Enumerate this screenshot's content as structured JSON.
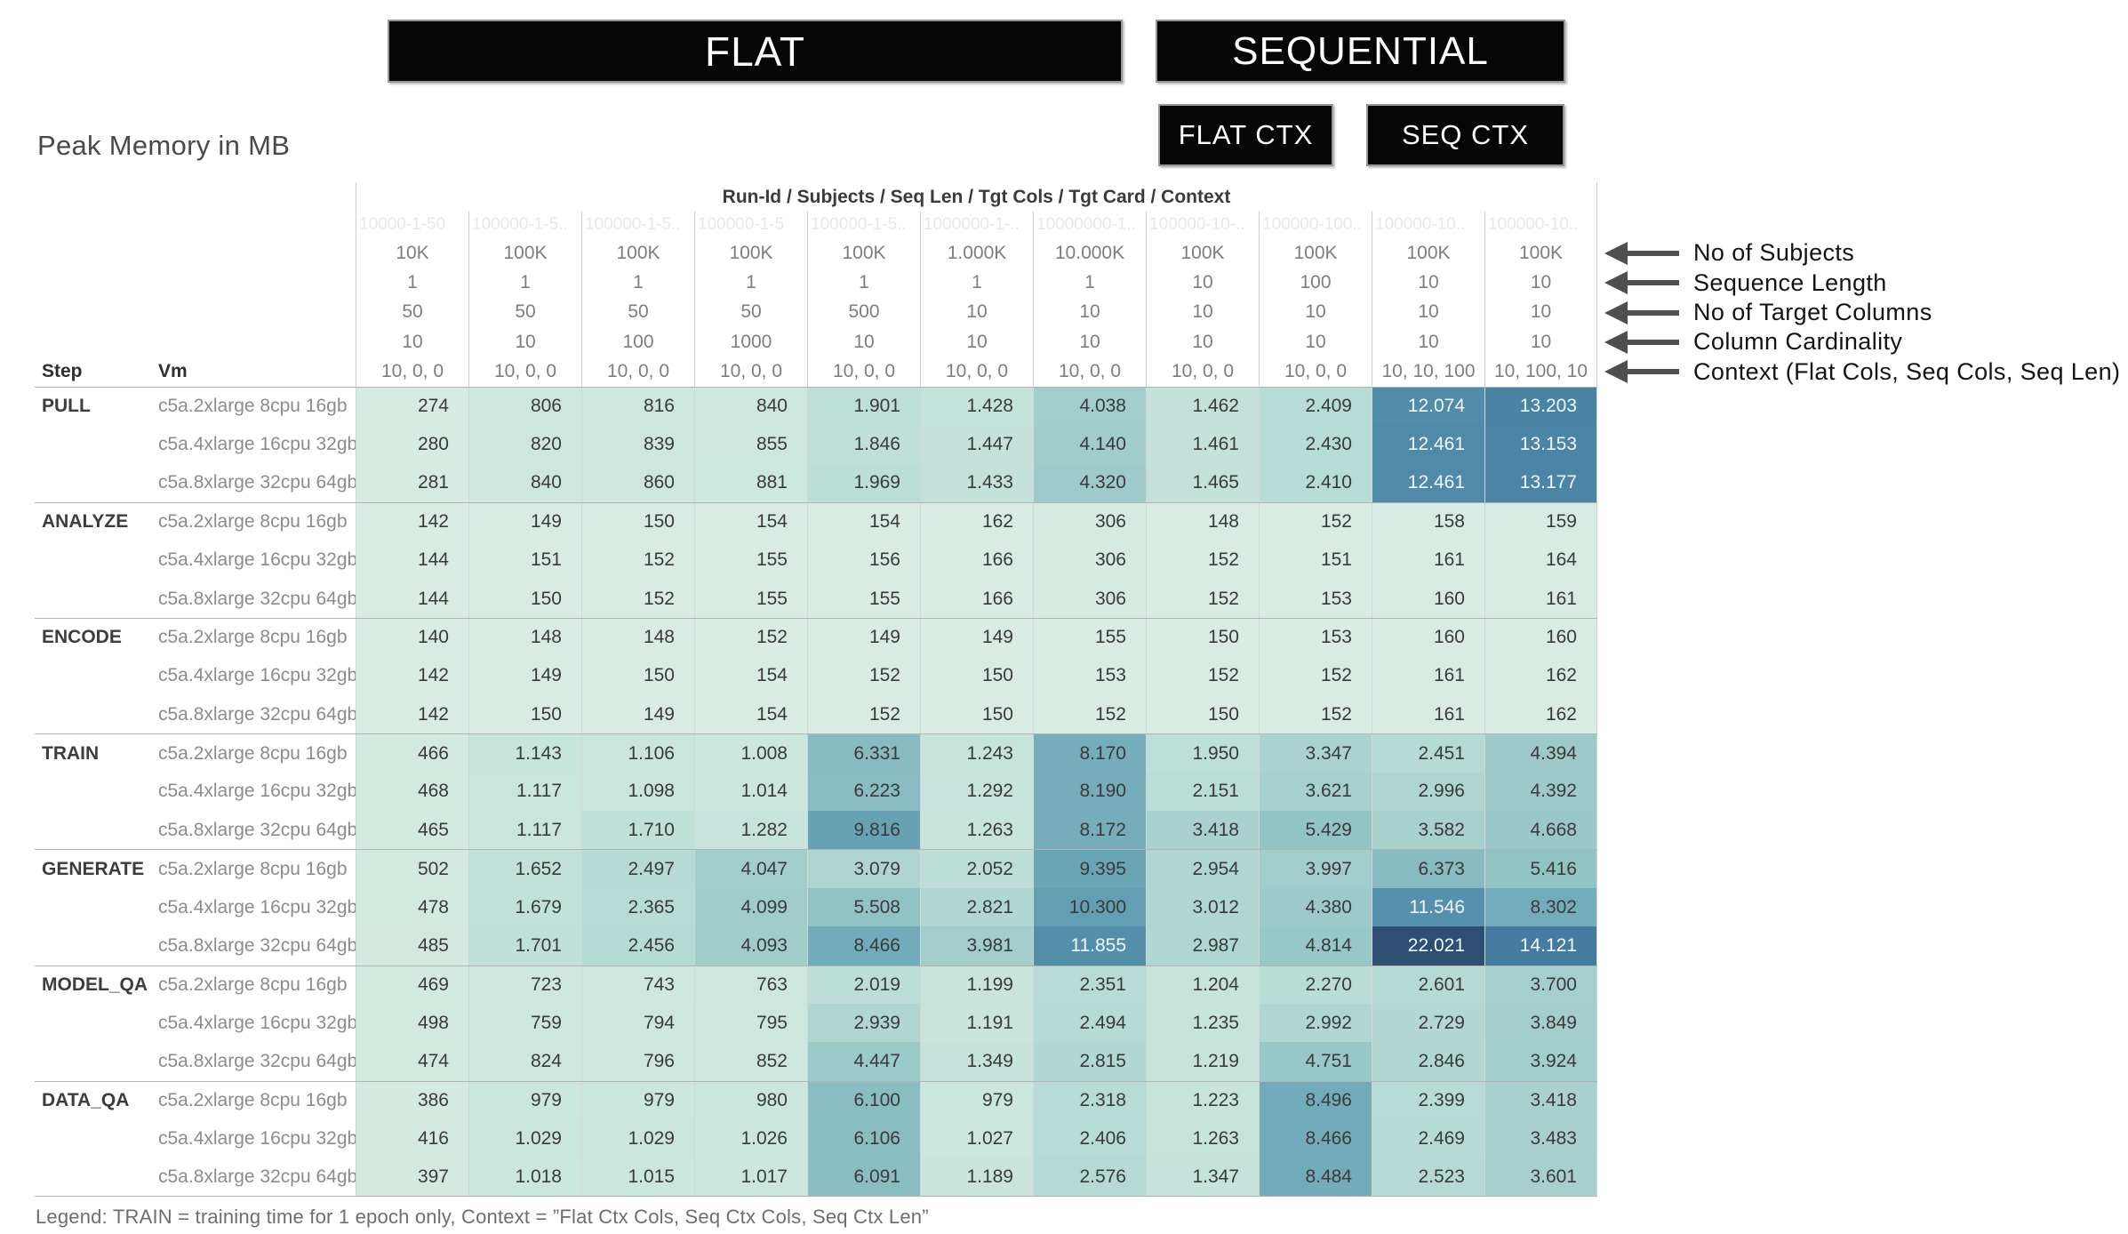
{
  "banners": {
    "flat": "FLAT",
    "sequential": "SEQUENTIAL",
    "flat_ctx": "FLAT CTX",
    "seq_ctx": "SEQ CTX"
  },
  "title": "Peak Memory in MB",
  "legend": "Legend: TRAIN = training time for 1 epoch only, Context = ”Flat Ctx Cols, Seq Ctx Cols, Seq Ctx Len”",
  "annotations": [
    "No of Subjects",
    "Sequence Length",
    "No of Target Columns",
    "Column Cardinality",
    "Context (Flat Cols, Seq Cols, Seq Len)"
  ],
  "chart_data": {
    "type": "heatmap",
    "title": "Peak Memory in MB",
    "unit": "MB",
    "column_header_title": "Run-Id / Subjects / Seq Len / Tgt Cols / Tgt Card / Context",
    "row_header_labels": {
      "step": "Step",
      "vm": "Vm"
    },
    "number_format": "thousands separated by period, e.g. 12074 shown as 12.074",
    "columns": [
      {
        "run_id": "10000-1-50",
        "subjects": "10K",
        "seq_len": "1",
        "tgt_cols": "50",
        "tgt_card": "10",
        "context": "10, 0, 0"
      },
      {
        "run_id": "100000-1-5..",
        "subjects": "100K",
        "seq_len": "1",
        "tgt_cols": "50",
        "tgt_card": "10",
        "context": "10, 0, 0"
      },
      {
        "run_id": "100000-1-5..",
        "subjects": "100K",
        "seq_len": "1",
        "tgt_cols": "50",
        "tgt_card": "100",
        "context": "10, 0, 0"
      },
      {
        "run_id": "100000-1-5",
        "subjects": "100K",
        "seq_len": "1",
        "tgt_cols": "50",
        "tgt_card": "1000",
        "context": "10, 0, 0"
      },
      {
        "run_id": "100000-1-5..",
        "subjects": "100K",
        "seq_len": "1",
        "tgt_cols": "500",
        "tgt_card": "10",
        "context": "10, 0, 0"
      },
      {
        "run_id": "1000000-1-..",
        "subjects": "1.000K",
        "seq_len": "1",
        "tgt_cols": "10",
        "tgt_card": "10",
        "context": "10, 0, 0"
      },
      {
        "run_id": "10000000-1..",
        "subjects": "10.000K",
        "seq_len": "1",
        "tgt_cols": "10",
        "tgt_card": "10",
        "context": "10, 0, 0"
      },
      {
        "run_id": "100000-10-..",
        "subjects": "100K",
        "seq_len": "10",
        "tgt_cols": "10",
        "tgt_card": "10",
        "context": "10, 0, 0"
      },
      {
        "run_id": "100000-100..",
        "subjects": "100K",
        "seq_len": "100",
        "tgt_cols": "10",
        "tgt_card": "10",
        "context": "10, 0, 0"
      },
      {
        "run_id": "100000-10..",
        "subjects": "100K",
        "seq_len": "10",
        "tgt_cols": "10",
        "tgt_card": "10",
        "context": "10, 10, 100"
      },
      {
        "run_id": "100000-10..",
        "subjects": "100K",
        "seq_len": "10",
        "tgt_cols": "10",
        "tgt_card": "10",
        "context": "10, 100, 10"
      }
    ],
    "steps": [
      {
        "step": "PULL",
        "rows": [
          {
            "vm": "c5a.2xlarge 8cpu 16gb",
            "values": [
              274,
              806,
              816,
              840,
              1901,
              1428,
              4038,
              1462,
              2409,
              12074,
              13203
            ]
          },
          {
            "vm": "c5a.4xlarge 16cpu 32gb",
            "values": [
              280,
              820,
              839,
              855,
              1846,
              1447,
              4140,
              1461,
              2430,
              12461,
              13153
            ]
          },
          {
            "vm": "c5a.8xlarge 32cpu 64gb",
            "values": [
              281,
              840,
              860,
              881,
              1969,
              1433,
              4320,
              1465,
              2410,
              12461,
              13177
            ]
          }
        ]
      },
      {
        "step": "ANALYZE",
        "rows": [
          {
            "vm": "c5a.2xlarge 8cpu 16gb",
            "values": [
              142,
              149,
              150,
              154,
              154,
              162,
              306,
              148,
              152,
              158,
              159
            ]
          },
          {
            "vm": "c5a.4xlarge 16cpu 32gb",
            "values": [
              144,
              151,
              152,
              155,
              156,
              166,
              306,
              152,
              151,
              161,
              164
            ]
          },
          {
            "vm": "c5a.8xlarge 32cpu 64gb",
            "values": [
              144,
              150,
              152,
              155,
              155,
              166,
              306,
              152,
              153,
              160,
              161
            ]
          }
        ]
      },
      {
        "step": "ENCODE",
        "rows": [
          {
            "vm": "c5a.2xlarge 8cpu 16gb",
            "values": [
              140,
              148,
              148,
              152,
              149,
              149,
              155,
              150,
              153,
              160,
              160
            ]
          },
          {
            "vm": "c5a.4xlarge 16cpu 32gb",
            "values": [
              142,
              149,
              150,
              154,
              152,
              150,
              153,
              152,
              152,
              161,
              162
            ]
          },
          {
            "vm": "c5a.8xlarge 32cpu 64gb",
            "values": [
              142,
              150,
              149,
              154,
              152,
              150,
              152,
              150,
              152,
              161,
              162
            ]
          }
        ]
      },
      {
        "step": "TRAIN",
        "rows": [
          {
            "vm": "c5a.2xlarge 8cpu 16gb",
            "values": [
              466,
              1143,
              1106,
              1008,
              6331,
              1243,
              8170,
              1950,
              3347,
              2451,
              4394
            ]
          },
          {
            "vm": "c5a.4xlarge 16cpu 32gb",
            "values": [
              468,
              1117,
              1098,
              1014,
              6223,
              1292,
              8190,
              2151,
              3621,
              2996,
              4392
            ]
          },
          {
            "vm": "c5a.8xlarge 32cpu 64gb",
            "values": [
              465,
              1117,
              1710,
              1282,
              9816,
              1263,
              8172,
              3418,
              5429,
              3582,
              4668
            ]
          }
        ]
      },
      {
        "step": "GENERATE",
        "rows": [
          {
            "vm": "c5a.2xlarge 8cpu 16gb",
            "values": [
              502,
              1652,
              2497,
              4047,
              3079,
              2052,
              9395,
              2954,
              3997,
              6373,
              5416
            ]
          },
          {
            "vm": "c5a.4xlarge 16cpu 32gb",
            "values": [
              478,
              1679,
              2365,
              4099,
              5508,
              2821,
              10300,
              3012,
              4380,
              11546,
              8302
            ]
          },
          {
            "vm": "c5a.8xlarge 32cpu 64gb",
            "values": [
              485,
              1701,
              2456,
              4093,
              8466,
              3981,
              11855,
              2987,
              4814,
              22021,
              14121
            ]
          }
        ]
      },
      {
        "step": "MODEL_QA",
        "rows": [
          {
            "vm": "c5a.2xlarge 8cpu 16gb",
            "values": [
              469,
              723,
              743,
              763,
              2019,
              1199,
              2351,
              1204,
              2270,
              2601,
              3700
            ]
          },
          {
            "vm": "c5a.4xlarge 16cpu 32gb",
            "values": [
              498,
              759,
              794,
              795,
              2939,
              1191,
              2494,
              1235,
              2992,
              2729,
              3849
            ]
          },
          {
            "vm": "c5a.8xlarge 32cpu 64gb",
            "values": [
              474,
              824,
              796,
              852,
              4447,
              1349,
              2815,
              1219,
              4751,
              2846,
              3924
            ]
          }
        ]
      },
      {
        "step": "DATA_QA",
        "rows": [
          {
            "vm": "c5a.2xlarge 8cpu 16gb",
            "values": [
              386,
              979,
              979,
              980,
              6100,
              979,
              2318,
              1223,
              8496,
              2399,
              3418
            ]
          },
          {
            "vm": "c5a.4xlarge 16cpu 32gb",
            "values": [
              416,
              1029,
              1029,
              1026,
              6106,
              1027,
              2406,
              1263,
              8466,
              2469,
              3483
            ]
          },
          {
            "vm": "c5a.8xlarge 32cpu 64gb",
            "values": [
              397,
              1018,
              1015,
              1017,
              6091,
              1189,
              2576,
              1347,
              8484,
              2523,
              3601
            ]
          }
        ]
      }
    ],
    "color_scale": {
      "domain_min": 140,
      "domain_max": 22021,
      "white_text_threshold": 0.5,
      "stops": [
        [
          0.0,
          "#d8ece3"
        ],
        [
          0.05,
          "#c7e4db"
        ],
        [
          0.11,
          "#b5dad4"
        ],
        [
          0.17,
          "#a3cecb"
        ],
        [
          0.24,
          "#92c3c5"
        ],
        [
          0.31,
          "#81b6bf"
        ],
        [
          0.38,
          "#72abb9"
        ],
        [
          0.46,
          "#63a0b3"
        ],
        [
          0.52,
          "#5591ad"
        ],
        [
          0.58,
          "#4c88a7"
        ],
        [
          0.65,
          "#42799c"
        ],
        [
          0.8,
          "#3a6488"
        ],
        [
          1.0,
          "#2e4e74"
        ]
      ]
    }
  }
}
